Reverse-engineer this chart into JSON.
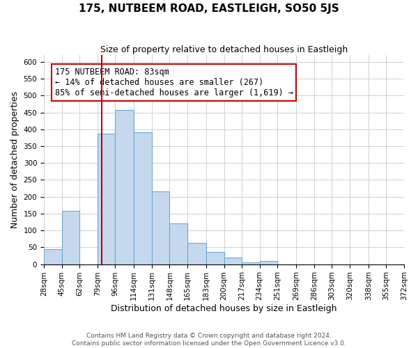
{
  "title": "175, NUTBEEM ROAD, EASTLEIGH, SO50 5JS",
  "subtitle": "Size of property relative to detached houses in Eastleigh",
  "xlabel": "Distribution of detached houses by size in Eastleigh",
  "ylabel": "Number of detached properties",
  "footer_line1": "Contains HM Land Registry data © Crown copyright and database right 2024.",
  "footer_line2": "Contains public sector information licensed under the Open Government Licence v3.0.",
  "bin_labels": [
    "28sqm",
    "45sqm",
    "62sqm",
    "79sqm",
    "96sqm",
    "114sqm",
    "131sqm",
    "148sqm",
    "165sqm",
    "183sqm",
    "200sqm",
    "217sqm",
    "234sqm",
    "251sqm",
    "269sqm",
    "286sqm",
    "303sqm",
    "320sqm",
    "338sqm",
    "355sqm",
    "372sqm"
  ],
  "bar_heights": [
    45,
    158,
    0,
    388,
    458,
    392,
    215,
    120,
    63,
    37,
    20,
    6,
    10,
    0,
    0,
    0,
    0,
    0,
    0,
    0
  ],
  "bin_edges": [
    28,
    45,
    62,
    79,
    96,
    114,
    131,
    148,
    165,
    183,
    200,
    217,
    234,
    251,
    269,
    286,
    303,
    320,
    338,
    355,
    372
  ],
  "bar_color": "#c5d8ed",
  "bar_edge_color": "#6aaad4",
  "grid_color": "#d0d0d0",
  "vline_x": 83,
  "vline_color": "#cc0000",
  "annotation_box_edge_color": "#cc0000",
  "annotation_title": "175 NUTBEEM ROAD: 83sqm",
  "annotation_line1": "← 14% of detached houses are smaller (267)",
  "annotation_line2": "85% of semi-detached houses are larger (1,619) →",
  "ylim": [
    0,
    620
  ],
  "yticks": [
    0,
    50,
    100,
    150,
    200,
    250,
    300,
    350,
    400,
    450,
    500,
    550,
    600
  ],
  "title_fontsize": 11,
  "subtitle_fontsize": 9,
  "ylabel_fontsize": 9,
  "xlabel_fontsize": 9,
  "tick_fontsize": 7.5,
  "footer_fontsize": 6.5,
  "annotation_fontsize": 8.5
}
